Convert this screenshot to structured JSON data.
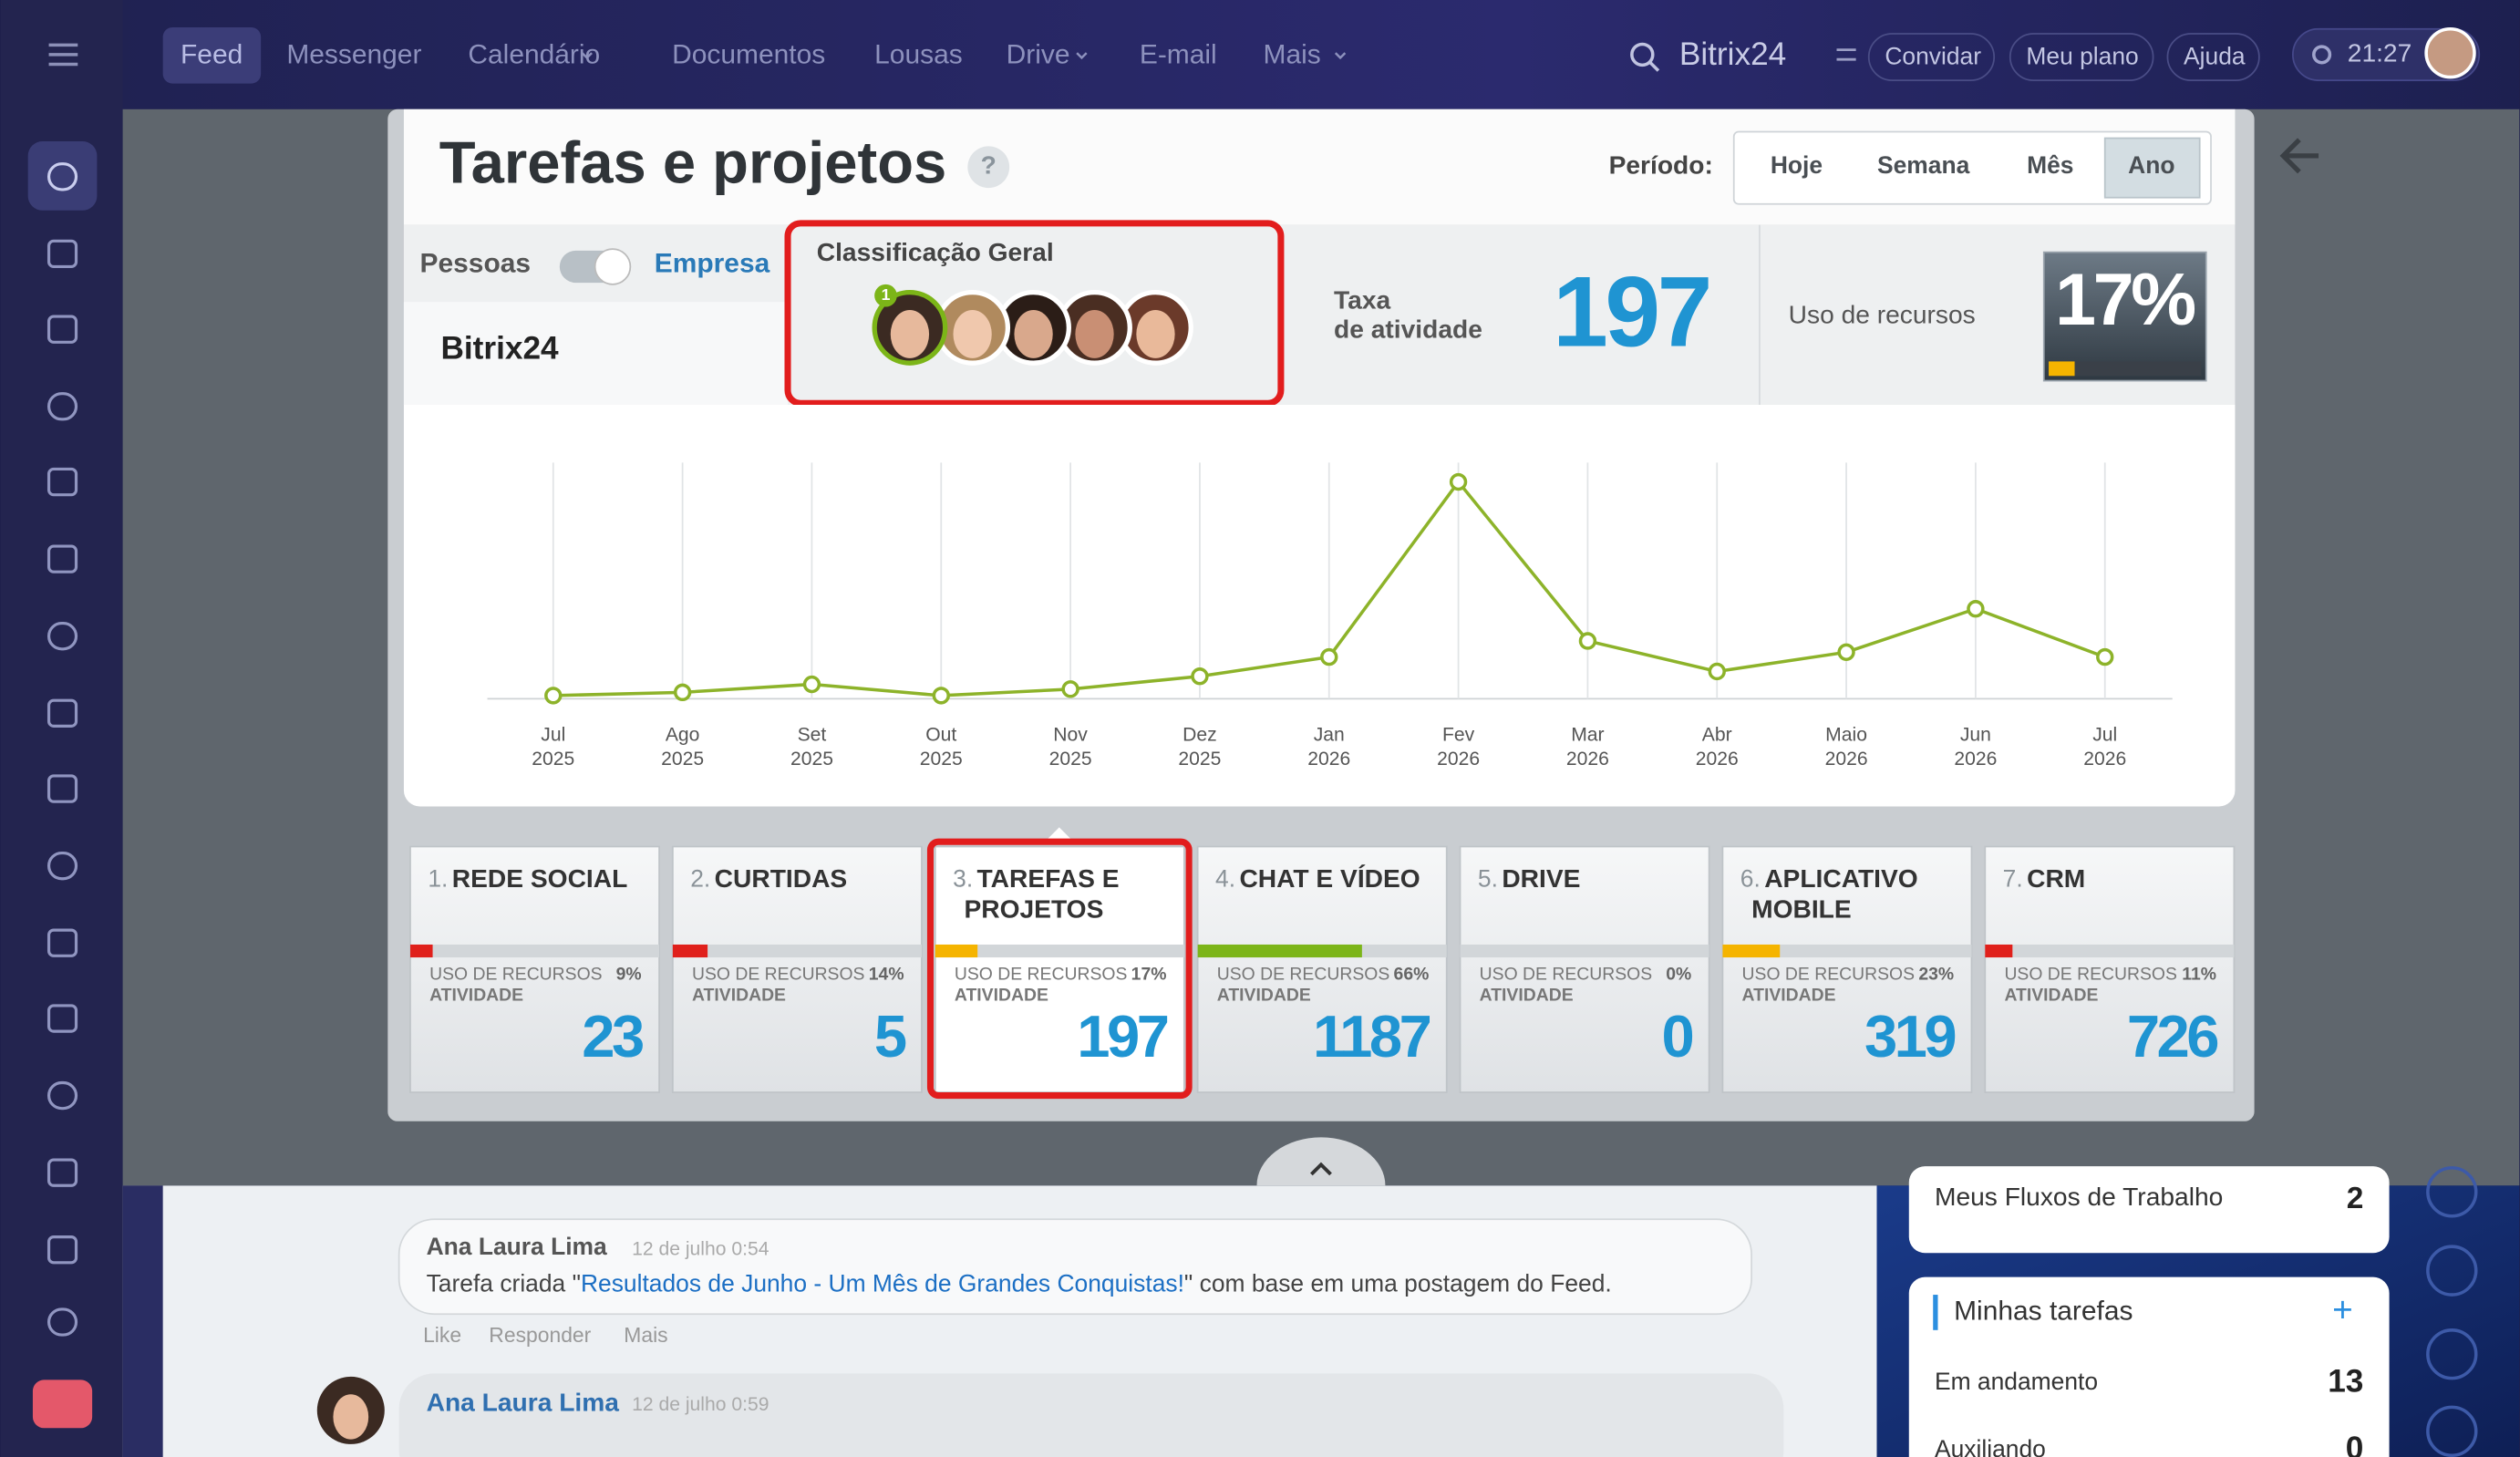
{
  "nav": {
    "items": [
      "Feed",
      "Messenger",
      "Calendário",
      "Documentos",
      "Lousas",
      "Drive",
      "E-mail",
      "Mais"
    ],
    "brand": "Bitrix24",
    "buttons": [
      "Convidar",
      "Meu plano",
      "Ajuda"
    ],
    "time": "21:27"
  },
  "panel": {
    "title": "Tarefas e projetos",
    "help": "?",
    "period_label": "Período:",
    "periods": [
      "Hoje",
      "Semana",
      "Mês",
      "Ano"
    ],
    "people": "Pessoas",
    "company": "Empresa",
    "company_name": "Bitrix24",
    "ranking_title": "Classificação Geral",
    "rank_badge": "1",
    "activity_label": [
      "Taxa",
      "de atividade"
    ],
    "activity": 197,
    "usage_label": "Uso de recursos",
    "usage": {
      "value": 17,
      "label": "17%"
    },
    "card_usage_label": "USO DE RECURSOS",
    "card_activity_label": "ATIVIDADE",
    "cards": [
      {
        "index": "1.",
        "name": [
          "REDE SOCIAL"
        ],
        "usage": {
          "value": 9,
          "label": "9%"
        },
        "activity": 23,
        "color": "#e0201b"
      },
      {
        "index": "2.",
        "name": [
          "CURTIDAS"
        ],
        "usage": {
          "value": 14,
          "label": "14%"
        },
        "activity": 5,
        "color": "#e0201b"
      },
      {
        "index": "3.",
        "name": [
          "TAREFAS E",
          "PROJETOS"
        ],
        "usage": {
          "value": 17,
          "label": "17%"
        },
        "activity": 197,
        "color": "#f5b400"
      },
      {
        "index": "4.",
        "name": [
          "CHAT E VÍDEO"
        ],
        "usage": {
          "value": 66,
          "label": "66%"
        },
        "activity": 1187,
        "color": "#7cb518"
      },
      {
        "index": "5.",
        "name": [
          "DRIVE"
        ],
        "usage": {
          "value": 0,
          "label": "0%"
        },
        "activity": 0,
        "color": "#e0201b"
      },
      {
        "index": "6.",
        "name": [
          "APLICATIVO",
          "MOBILE"
        ],
        "usage": {
          "value": 23,
          "label": "23%"
        },
        "activity": 319,
        "color": "#f5b400"
      },
      {
        "index": "7.",
        "name": [
          "CRM"
        ],
        "usage": {
          "value": 11,
          "label": "11%"
        },
        "activity": 726,
        "color": "#e0201b"
      }
    ]
  },
  "chart_data": {
    "type": "line",
    "categories": [
      [
        "Jul",
        "2025"
      ],
      [
        "Ago",
        "2025"
      ],
      [
        "Set",
        "2025"
      ],
      [
        "Out",
        "2025"
      ],
      [
        "Nov",
        "2025"
      ],
      [
        "Dez",
        "2025"
      ],
      [
        "Jan",
        "2026"
      ],
      [
        "Fev",
        "2026"
      ],
      [
        "Mar",
        "2026"
      ],
      [
        "Abr",
        "2026"
      ],
      [
        "Maio",
        "2026"
      ],
      [
        "Jun",
        "2026"
      ],
      [
        "Jul",
        "2026"
      ]
    ],
    "values": [
      2,
      4,
      9,
      2,
      6,
      14,
      26,
      135,
      36,
      17,
      29,
      56,
      26
    ],
    "color": "#8db32a",
    "ylim": [
      0,
      150
    ]
  },
  "feed": {
    "posts": [
      {
        "author": "Ana Laura Lima",
        "time": "12 de julho 0:54",
        "text_before": "Tarefa criada \"",
        "link": "Resultados de Junho - Um Mês de Grandes Conquistas!",
        "text_after": "\" com base em uma postagem do Feed.",
        "actions": [
          "Like",
          "Responder",
          "Mais"
        ]
      },
      {
        "author": "Ana Laura Lima",
        "time": "12 de julho 0:59"
      }
    ]
  },
  "sidebar": {
    "workflows": {
      "label": "Meus Fluxos de Trabalho",
      "count": 2
    },
    "tasks": {
      "title": "Minhas tarefas",
      "add": "+",
      "rows": [
        {
          "label": "Em andamento",
          "count": 13
        },
        {
          "label": "Auxiliando",
          "count": 0
        }
      ]
    }
  }
}
